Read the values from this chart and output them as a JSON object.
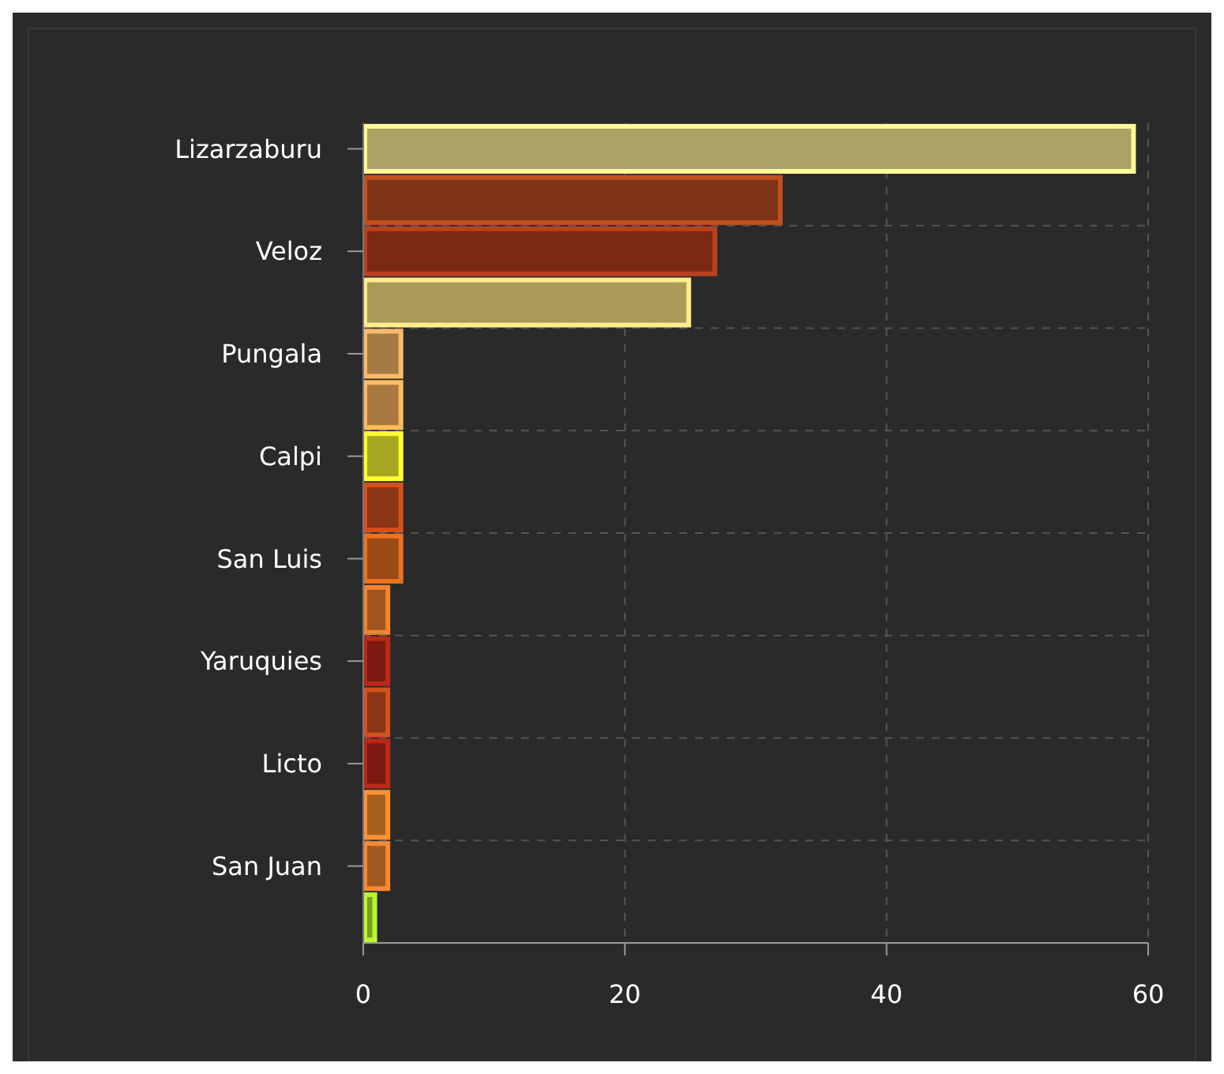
{
  "chart_data": {
    "type": "bar",
    "orientation": "horizontal",
    "categories": [
      "Lizarzaburu",
      null,
      "Veloz",
      null,
      "Pungala",
      null,
      "Calpi",
      null,
      "San Luis",
      null,
      "Yaruquies",
      null,
      "Licto",
      null,
      "San Juan",
      null
    ],
    "values": [
      59,
      32,
      27,
      25,
      3,
      3,
      3,
      3,
      3,
      2,
      2,
      2,
      2,
      2,
      2,
      1
    ],
    "colors": [
      "#aba263",
      "#7f3415",
      "#7a2a14",
      "#a99a5a",
      "#a47a45",
      "#a87a40",
      "#a8a820",
      "#8a3515",
      "#9a4a15",
      "#a05520",
      "#7a1a10",
      "#8a3515",
      "#7a1a10",
      "#a86020",
      "#a05a20",
      "#7aa020"
    ],
    "xlim": [
      0,
      60
    ],
    "xticks": [
      0,
      20,
      40,
      60
    ],
    "grid": true
  }
}
